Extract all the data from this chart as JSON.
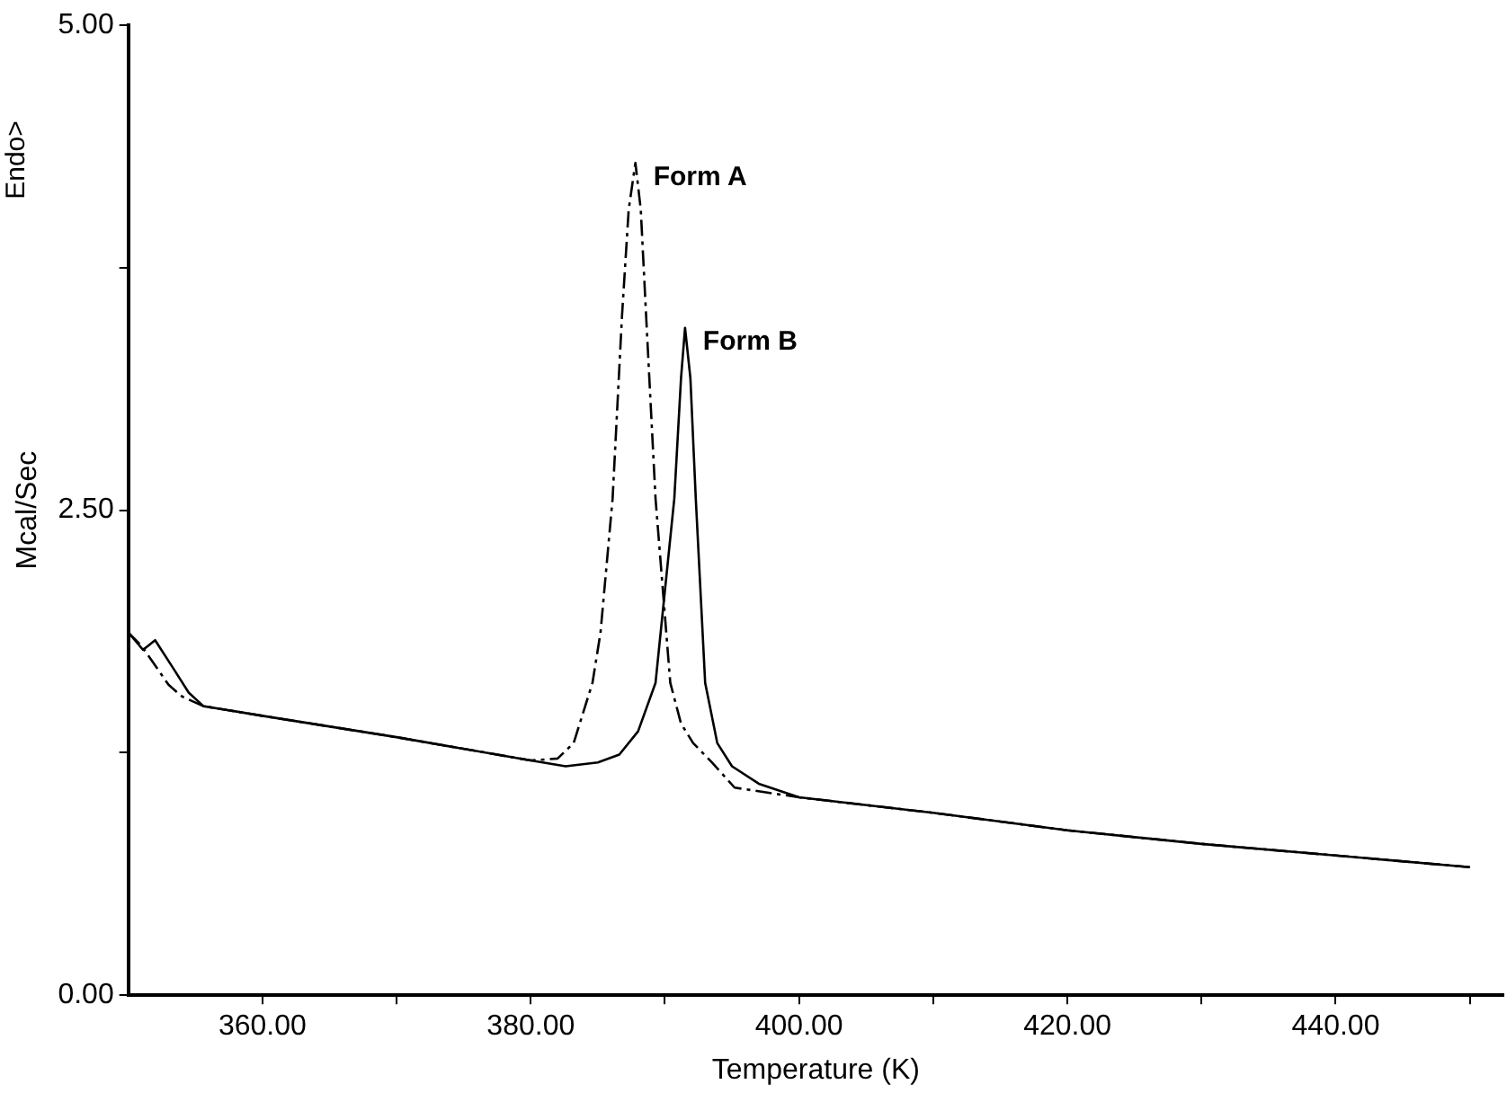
{
  "chart_data": {
    "type": "line",
    "xlabel": "Temperature (K)",
    "ylabel": "Mcal/Sec",
    "annotations": [
      "Endo>"
    ],
    "xlim": [
      350,
      452.5
    ],
    "xticks": [
      {
        "value": 360,
        "label": "360.00"
      },
      {
        "value": 370,
        "label": null
      },
      {
        "value": 380,
        "label": "380.00"
      },
      {
        "value": 390,
        "label": null
      },
      {
        "value": 400,
        "label": "400.00"
      },
      {
        "value": 410,
        "label": null
      },
      {
        "value": 420,
        "label": "420.00"
      },
      {
        "value": 430,
        "label": null
      },
      {
        "value": 440,
        "label": "440.00"
      },
      {
        "value": 450,
        "label": null
      }
    ],
    "ylim": [
      0,
      5
    ],
    "yticks": [
      {
        "value": 0,
        "label": "0.00"
      },
      {
        "value": 1.25,
        "label": null
      },
      {
        "value": 2.5,
        "label": "2.50"
      },
      {
        "value": 3.75,
        "label": null
      },
      {
        "value": 5,
        "label": "5.00"
      }
    ],
    "legend": false,
    "marker": "none",
    "line_style": "solid",
    "series": [
      {
        "name": "Form A",
        "color": "#000000",
        "line_style": "dashed",
        "x": [
          350,
          351,
          352,
          353,
          354,
          355.6,
          360,
          370,
          380,
          382,
          383.2,
          384.6,
          385.2,
          386.1,
          386.8,
          387.3,
          387.8,
          388.2,
          388.6,
          389.3,
          390.4,
          391.2,
          392.1,
          393.5,
          395.2,
          400,
          410,
          420,
          430,
          440,
          450
        ],
        "values": [
          1.87,
          1.8,
          1.7,
          1.6,
          1.54,
          1.49,
          1.44,
          1.33,
          1.21,
          1.22,
          1.3,
          1.61,
          1.87,
          2.56,
          3.5,
          4.05,
          4.29,
          4.05,
          3.5,
          2.56,
          1.61,
          1.4,
          1.3,
          1.2,
          1.07,
          1.02,
          0.94,
          0.85,
          0.78,
          0.72,
          0.66
        ]
      },
      {
        "name": "Form B",
        "color": "#000000",
        "x": [
          350,
          351.1,
          352,
          353.4,
          354.5,
          355.6,
          360,
          370,
          380,
          382.6,
          385,
          386.6,
          388,
          389.3,
          390.7,
          391.2,
          391.5,
          391.9,
          392.3,
          393,
          393.9,
          395,
          397,
          400,
          410,
          420,
          430,
          440,
          450
        ],
        "values": [
          1.87,
          1.78,
          1.83,
          1.68,
          1.56,
          1.49,
          1.44,
          1.33,
          1.21,
          1.18,
          1.2,
          1.24,
          1.36,
          1.61,
          2.56,
          3.18,
          3.44,
          3.18,
          2.56,
          1.61,
          1.3,
          1.18,
          1.09,
          1.02,
          0.94,
          0.85,
          0.78,
          0.72,
          0.66
        ]
      }
    ]
  }
}
